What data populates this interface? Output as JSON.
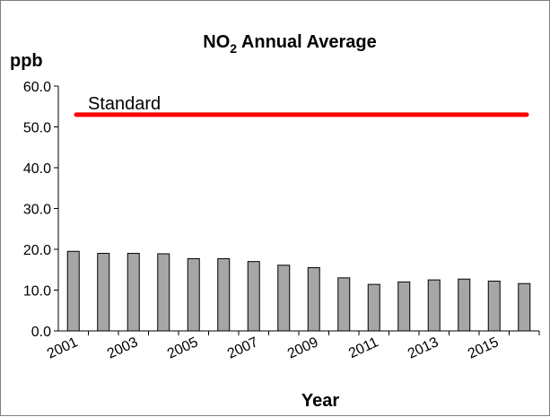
{
  "chart_data": {
    "type": "bar",
    "title_main": "NO",
    "title_sub": "2",
    "title_rest": " Annual Average",
    "ylabel": "ppb",
    "xlabel": "Year",
    "ylim": [
      0,
      60
    ],
    "yticks": [
      0,
      10,
      20,
      30,
      40,
      50,
      60
    ],
    "ytick_labels": [
      "0.0",
      "10.0",
      "20.0",
      "30.0",
      "40.0",
      "50.0",
      "60.0"
    ],
    "categories": [
      "2001",
      "2002",
      "2003",
      "2004",
      "2005",
      "2006",
      "2007",
      "2008",
      "2009",
      "2010",
      "2011",
      "2012",
      "2013",
      "2014",
      "2015",
      "2016"
    ],
    "x_tick_labels_shown": [
      "2001",
      "2003",
      "2005",
      "2007",
      "2009",
      "2011",
      "2013",
      "2015"
    ],
    "series": [
      {
        "values": [
          19.5,
          19.0,
          19.0,
          18.9,
          17.7,
          17.7,
          17.0,
          16.1,
          15.5,
          13.0,
          11.4,
          12.0,
          12.5,
          12.7,
          12.2,
          11.6
        ]
      }
    ],
    "standard": {
      "label": "Standard",
      "value": 53
    },
    "grid": false,
    "colors": {
      "bar_fill": "#a6a6a6",
      "bar_stroke": "#000000",
      "standard_line": "#ff0000",
      "axis": "#000000"
    }
  }
}
